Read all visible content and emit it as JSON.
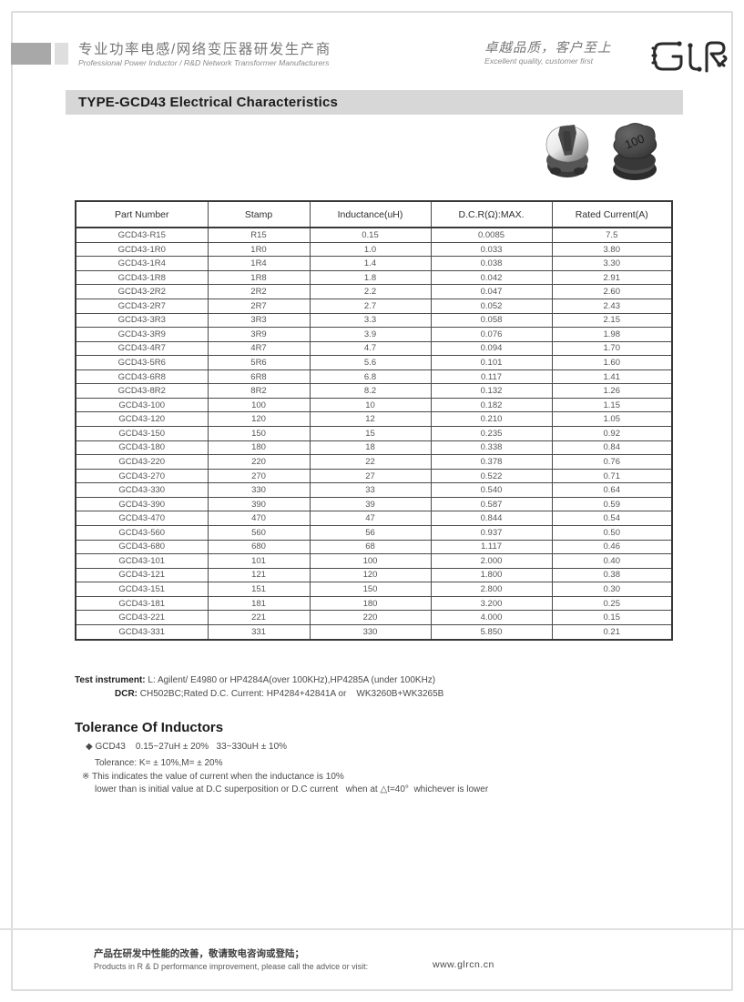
{
  "header": {
    "company_cn": "专业功率电感/网络变压器研发生产商",
    "company_en": "Professional Power Inductor / R&D Network Transformer Manufacturers",
    "slogan_cn": "卓越品质，客户至上",
    "slogan_en": "Excellent quality, customer first"
  },
  "title": "TYPE-GCD43 Electrical Characteristics",
  "product_marking": "100",
  "table": {
    "columns": [
      "Part Number",
      "Stamp",
      "Inductance(uH)",
      "D.C.R(Ω):MAX.",
      "Rated Current(A)"
    ],
    "rows": [
      [
        "GCD43-R15",
        "R15",
        "0.15",
        "0.0085",
        "7.5"
      ],
      [
        "GCD43-1R0",
        "1R0",
        "1.0",
        "0.033",
        "3.80"
      ],
      [
        "GCD43-1R4",
        "1R4",
        "1.4",
        "0.038",
        "3.30"
      ],
      [
        "GCD43-1R8",
        "1R8",
        "1.8",
        "0.042",
        "2.91"
      ],
      [
        "GCD43-2R2",
        "2R2",
        "2.2",
        "0.047",
        "2.60"
      ],
      [
        "GCD43-2R7",
        "2R7",
        "2.7",
        "0.052",
        "2.43"
      ],
      [
        "GCD43-3R3",
        "3R3",
        "3.3",
        "0.058",
        "2.15"
      ],
      [
        "GCD43-3R9",
        "3R9",
        "3.9",
        "0.076",
        "1.98"
      ],
      [
        "GCD43-4R7",
        "4R7",
        "4.7",
        "0.094",
        "1.70"
      ],
      [
        "GCD43-5R6",
        "5R6",
        "5.6",
        "0.101",
        "1.60"
      ],
      [
        "GCD43-6R8",
        "6R8",
        "6.8",
        "0.117",
        "1.41"
      ],
      [
        "GCD43-8R2",
        "8R2",
        "8.2",
        "0.132",
        "1.26"
      ],
      [
        "GCD43-100",
        "100",
        "10",
        "0.182",
        "1.15"
      ],
      [
        "GCD43-120",
        "120",
        "12",
        "0.210",
        "1.05"
      ],
      [
        "GCD43-150",
        "150",
        "15",
        "0.235",
        "0.92"
      ],
      [
        "GCD43-180",
        "180",
        "18",
        "0.338",
        "0.84"
      ],
      [
        "GCD43-220",
        "220",
        "22",
        "0.378",
        "0.76"
      ],
      [
        "GCD43-270",
        "270",
        "27",
        "0.522",
        "0.71"
      ],
      [
        "GCD43-330",
        "330",
        "33",
        "0.540",
        "0.64"
      ],
      [
        "GCD43-390",
        "390",
        "39",
        "0.587",
        "0.59"
      ],
      [
        "GCD43-470",
        "470",
        "47",
        "0.844",
        "0.54"
      ],
      [
        "GCD43-560",
        "560",
        "56",
        "0.937",
        "0.50"
      ],
      [
        "GCD43-680",
        "680",
        "68",
        "1.117",
        "0.46"
      ],
      [
        "GCD43-101",
        "101",
        "100",
        "2.000",
        "0.40"
      ],
      [
        "GCD43-121",
        "121",
        "120",
        "1.800",
        "0.38"
      ],
      [
        "GCD43-151",
        "151",
        "150",
        "2.800",
        "0.30"
      ],
      [
        "GCD43-181",
        "181",
        "180",
        "3.200",
        "0.25"
      ],
      [
        "GCD43-221",
        "221",
        "220",
        "4.000",
        "0.15"
      ],
      [
        "GCD43-331",
        "331",
        "330",
        "5.850",
        "0.21"
      ]
    ]
  },
  "notes": {
    "label1": "Test instrument:",
    "text1": " L: Agilent/ E4980 or HP4284A(over 100KHz),HP4285A (under 100KHz)",
    "label2": "DCR:",
    "text2": " CH502BC;Rated D.C. Current: HP4284+42841A or    WK3260B+WK3265B"
  },
  "tolerance": {
    "heading": "Tolerance Of Inductors",
    "line1": "◆ GCD43    0.15~27uH ± 20%   33~330uH ± 10%",
    "line2": "Tolerance: K= ± 10%,M= ± 20%",
    "line3": "※ This indicates the value of current when the inductance is 10%",
    "line4": "lower than is initial value at D.C superposition or D.C current   when at △t=40°  whichever is lower"
  },
  "footer": {
    "cn": "产品在研发中性能的改善，敬请致电咨询或登陆；",
    "en": "Products in R & D performance improvement, please call the advice or visit:",
    "url": "www.glrcn.cn"
  },
  "colors": {
    "title_bar_bg": "#d7d7d7",
    "table_border": "#4a4a4a",
    "deco_dark": "#a8a8a8",
    "deco_light": "#dedede"
  }
}
